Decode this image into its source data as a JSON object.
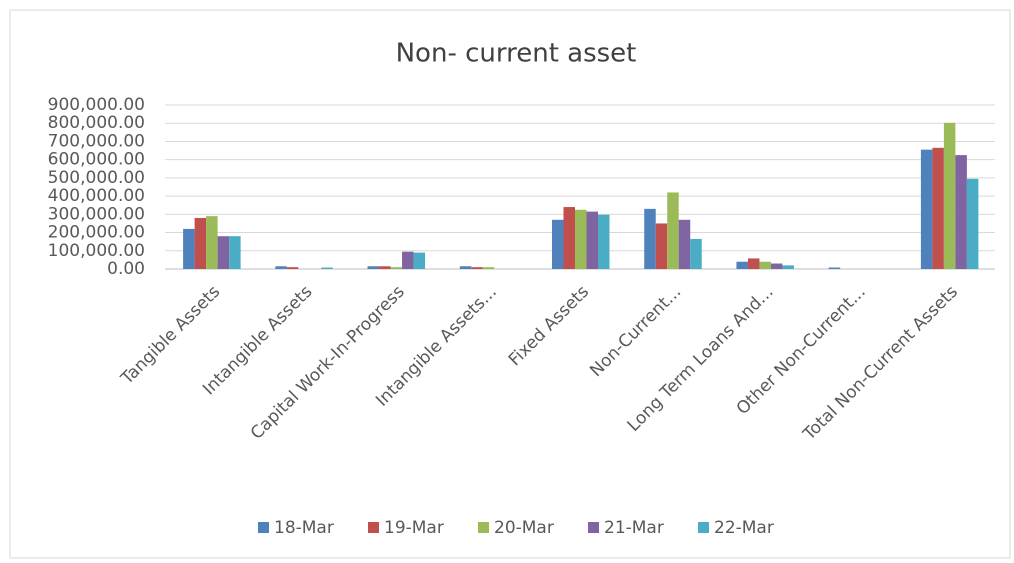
{
  "chart_data": {
    "type": "bar",
    "title": "Non- current asset",
    "categories": [
      "Tangible Assets",
      "Intangible Assets",
      "Capital Work-In-Progress",
      "Intangible Assets...",
      "Fixed Assets",
      "Non-Current...",
      "Long Term Loans And...",
      "Other Non-Current...",
      "Total Non-Current Assets"
    ],
    "series": [
      {
        "name": "18-Mar",
        "color": "#4f81bd",
        "values": [
          220000,
          15000,
          15000,
          15000,
          270000,
          330000,
          40000,
          8000,
          655000
        ]
      },
      {
        "name": "19-Mar",
        "color": "#c0504d",
        "values": [
          280000,
          10000,
          15000,
          10000,
          340000,
          250000,
          58000,
          0,
          665000
        ]
      },
      {
        "name": "20-Mar",
        "color": "#9bbb59",
        "values": [
          290000,
          0,
          10000,
          10000,
          325000,
          420000,
          40000,
          0,
          802000
        ]
      },
      {
        "name": "21-Mar",
        "color": "#8064a2",
        "values": [
          180000,
          0,
          95000,
          0,
          315000,
          270000,
          30000,
          0,
          625000
        ]
      },
      {
        "name": "22-Mar",
        "color": "#4bacc6",
        "values": [
          180000,
          8000,
          90000,
          0,
          298000,
          165000,
          20000,
          0,
          495000
        ]
      }
    ],
    "ylim": [
      0,
      900000
    ],
    "yticks": [
      {
        "value": 0,
        "label": "0.00"
      },
      {
        "value": 100000,
        "label": "100,000.00"
      },
      {
        "value": 200000,
        "label": "200,000.00"
      },
      {
        "value": 300000,
        "label": "300,000.00"
      },
      {
        "value": 400000,
        "label": "400,000.00"
      },
      {
        "value": 500000,
        "label": "500,000.00"
      },
      {
        "value": 600000,
        "label": "600,000.00"
      },
      {
        "value": 700000,
        "label": "700,000.00"
      },
      {
        "value": 800000,
        "label": "800,000.00"
      },
      {
        "value": 900000,
        "label": "900,000.00"
      }
    ],
    "grid": true,
    "legend": "bottom"
  }
}
